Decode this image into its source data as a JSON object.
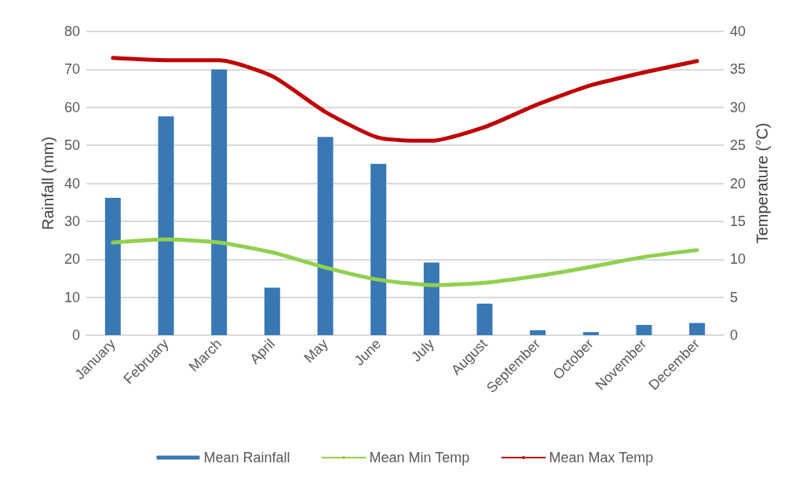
{
  "chart_data": {
    "type": "bar",
    "ylabel": "Rainfall (mm)",
    "y2label": "Temperature (°C)",
    "categories": [
      "January",
      "February",
      "March",
      "April",
      "May",
      "June",
      "July",
      "August",
      "September",
      "October",
      "November",
      "December"
    ],
    "series": [
      {
        "name": "Mean Rainfall",
        "color": "#3878b4",
        "values": [
          36.2,
          57.6,
          70,
          12.5,
          52.2,
          45.1,
          19.1,
          8.3,
          1.3,
          0.8,
          2.7,
          3.2
        ]
      },
      {
        "name": "Mean Min Temp",
        "type": "line",
        "axis": "y2",
        "color": "#92d050",
        "values": [
          12.2,
          12.6,
          12.2,
          10.9,
          8.9,
          7.3,
          6.6,
          6.9,
          7.8,
          9.0,
          10.3,
          11.2
        ]
      },
      {
        "name": "Mean Max Temp",
        "type": "line",
        "axis": "y2",
        "color": "#c00000",
        "values": [
          36.5,
          36.2,
          36.2,
          34.1,
          29.4,
          26.0,
          25.6,
          27.4,
          30.4,
          32.9,
          34.6,
          36.1
        ]
      }
    ],
    "ylim": [
      0,
      80
    ],
    "yticks": [
      0,
      10,
      20,
      30,
      40,
      50,
      60,
      70,
      80
    ],
    "y2lim": [
      0,
      40
    ],
    "y2ticks": [
      0,
      5,
      10,
      15,
      20,
      25,
      30,
      35,
      40
    ],
    "grid": "y",
    "legend": "bottom",
    "marker": "none",
    "line_style": "solid"
  }
}
